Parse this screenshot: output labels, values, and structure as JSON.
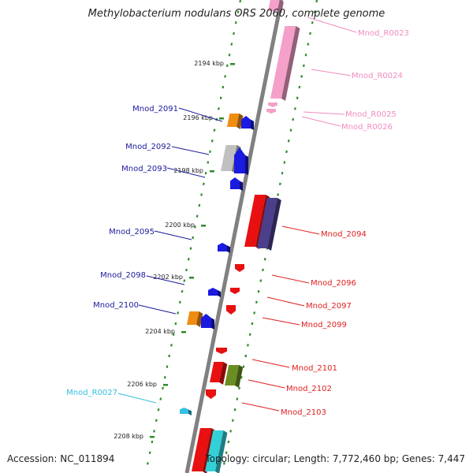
{
  "title": "Methylobacterium nodulans ORS 2060, complete genome",
  "footer": {
    "accession": "Accession: NC_011894",
    "summary": "Topology: circular; Length: 7,772,460 bp; Genes: 7,447"
  },
  "kbp_ticks": [
    {
      "label": "2194 kbp",
      "pos": 2194
    },
    {
      "label": "2196 kbp",
      "pos": 2196
    },
    {
      "label": "2198 kbp",
      "pos": 2198
    },
    {
      "label": "2200 kbp",
      "pos": 2200
    },
    {
      "label": "2202 kbp",
      "pos": 2202
    },
    {
      "label": "2204 kbp",
      "pos": 2204
    },
    {
      "label": "2206 kbp",
      "pos": 2206
    },
    {
      "label": "2208 kbp",
      "pos": 2208
    }
  ],
  "colors": {
    "backbone": "#808080",
    "tick_dots": "#2e8b2e",
    "forward_label": "#1a1a9c",
    "reverse_label": "#e02020",
    "rna_label": "#f08cc0",
    "trna_label": "#33c0e0"
  },
  "genes": [
    {
      "name": "Mnod_R0023",
      "side": "right",
      "color": "#f4a0c8",
      "label_color": "#f08cc0"
    },
    {
      "name": "Mnod_R0024",
      "side": "right",
      "color": "#f4a0c8",
      "label_color": "#f08cc0"
    },
    {
      "name": "Mnod_R0025",
      "side": "right",
      "color": "#f4a0c8",
      "label_color": "#f08cc0"
    },
    {
      "name": "Mnod_R0026",
      "side": "right",
      "color": "#f4a0c8",
      "label_color": "#f08cc0"
    },
    {
      "name": "Mnod_2091",
      "side": "left",
      "color": "#f08c10",
      "label_color": "#1a1a9c"
    },
    {
      "name": "Mnod_2092",
      "side": "left",
      "color": "#c0c0c0",
      "label_color": "#1a1a9c"
    },
    {
      "name": "Mnod_2093",
      "side": "left",
      "color": "#1a1ae0",
      "label_color": "#1a1a9c"
    },
    {
      "name": "Mnod_2094",
      "side": "right",
      "color": "#e81010",
      "label_color": "#e02020"
    },
    {
      "name": "Mnod_2095",
      "side": "left",
      "color": "#1a1ae0",
      "label_color": "#1a1a9c"
    },
    {
      "name": "Mnod_2096",
      "side": "right",
      "color": "#e81010",
      "label_color": "#e02020"
    },
    {
      "name": "Mnod_2097",
      "side": "right",
      "color": "#e81010",
      "label_color": "#e02020"
    },
    {
      "name": "Mnod_2098",
      "side": "left",
      "color": "#1a1ae0",
      "label_color": "#1a1a9c"
    },
    {
      "name": "Mnod_2099",
      "side": "right",
      "color": "#e81010",
      "label_color": "#e02020"
    },
    {
      "name": "Mnod_2100",
      "side": "left",
      "color": "#f08c10",
      "label_color": "#1a1a9c"
    },
    {
      "name": "Mnod_2101",
      "side": "right",
      "color": "#e81010",
      "label_color": "#e02020"
    },
    {
      "name": "Mnod_2102",
      "side": "right",
      "color": "#6b8e23",
      "label_color": "#e02020"
    },
    {
      "name": "Mnod_2103",
      "side": "right",
      "color": "#e81010",
      "label_color": "#e02020"
    },
    {
      "name": "Mnod_R0027",
      "side": "left",
      "color": "#33c0e0",
      "label_color": "#33c0e0"
    }
  ]
}
